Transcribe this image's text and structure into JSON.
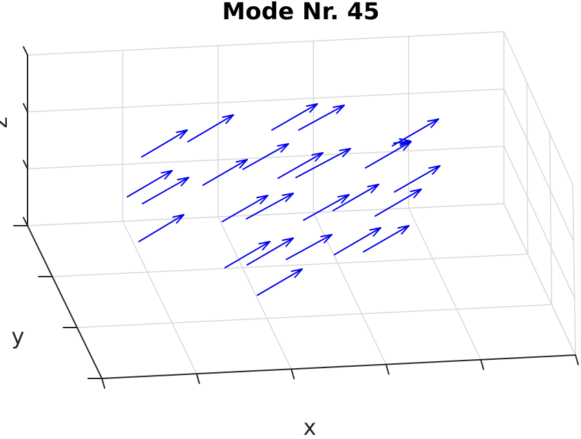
{
  "chart_data": {
    "type": "quiver3",
    "title": "Mode Nr. 45",
    "xlabel": "x",
    "ylabel": "y",
    "zlabel": "z",
    "grid": true,
    "colors": {
      "arrow": "#0000ee",
      "grid": "#d9d9d9",
      "axis": "#262626",
      "text": "#000000"
    }
  }
}
